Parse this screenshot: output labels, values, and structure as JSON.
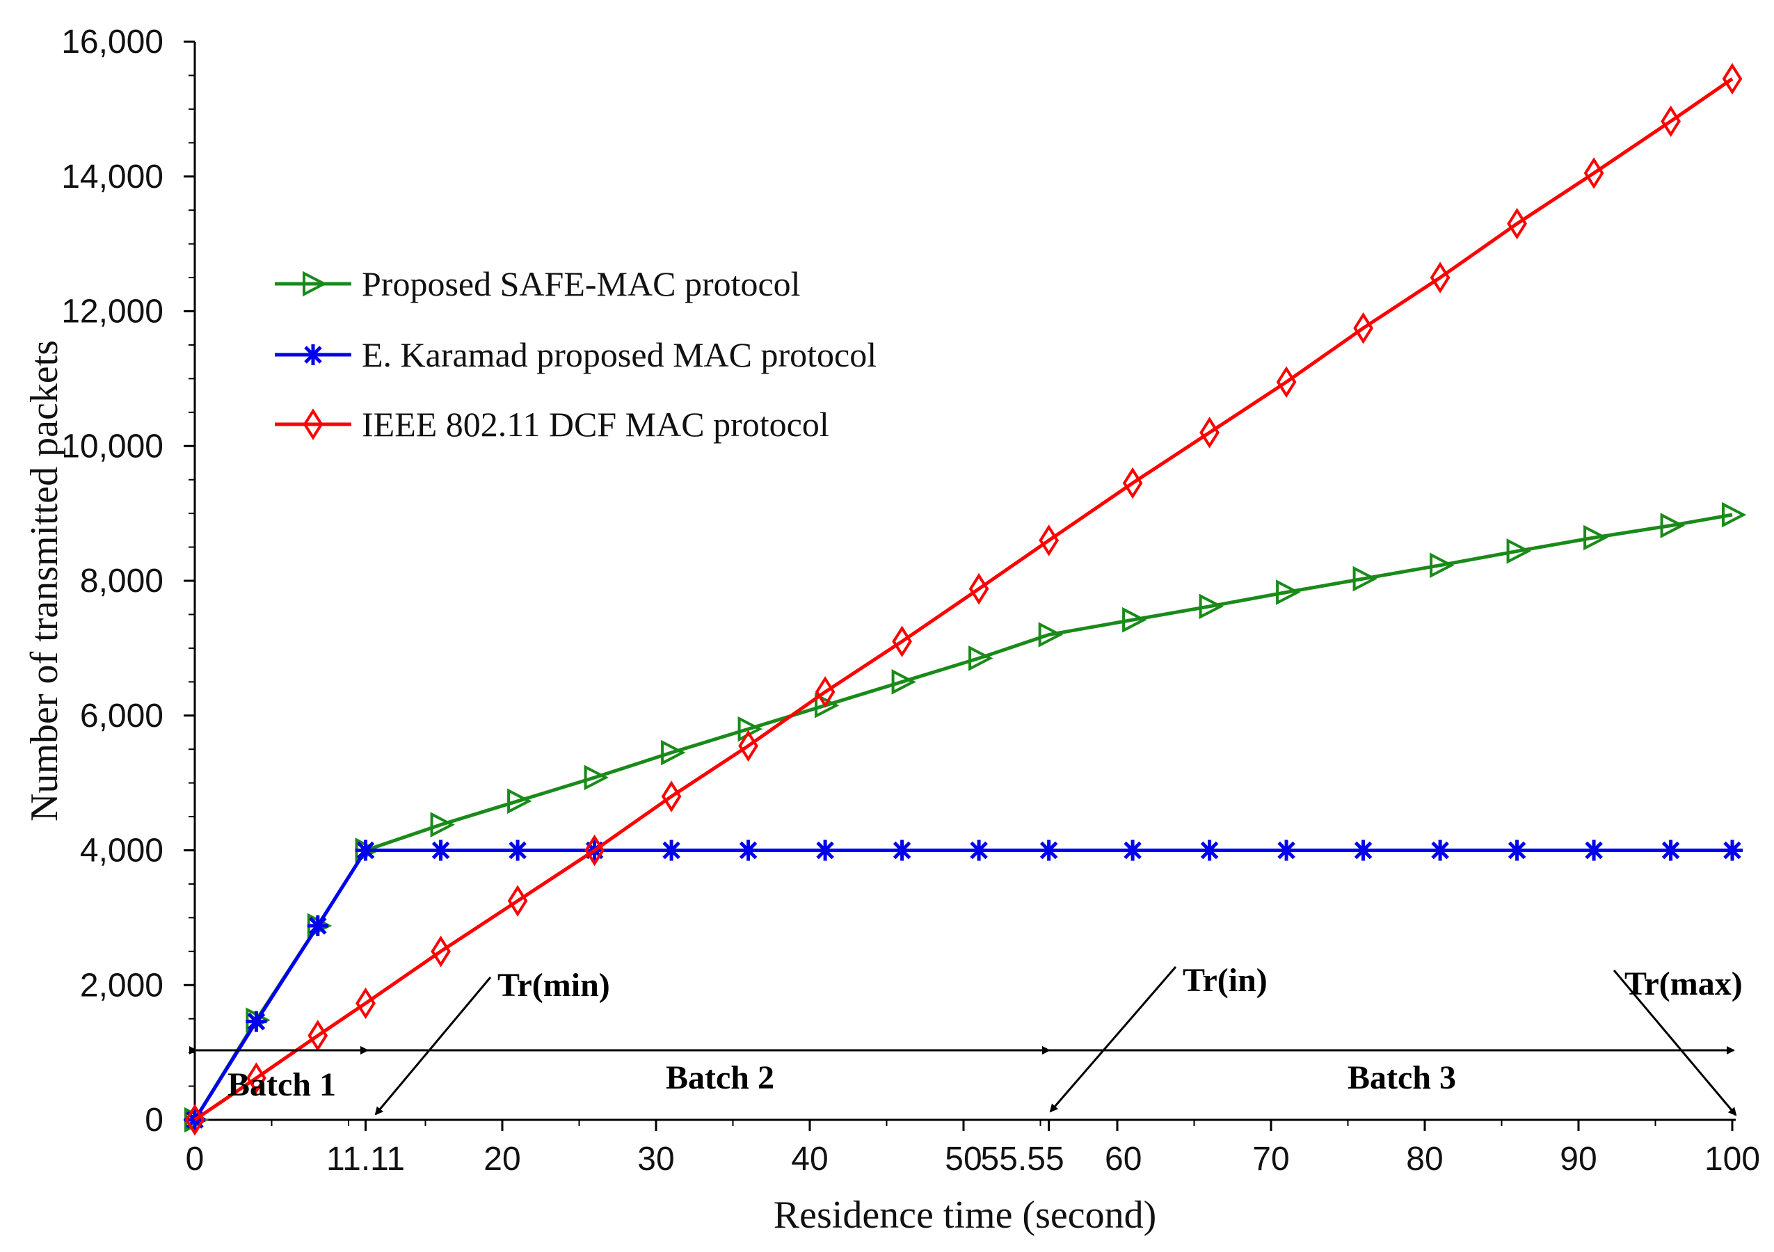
{
  "chart_data": {
    "type": "line",
    "title": "",
    "xlabel": "Residence time (second)",
    "ylabel": "Number of transmitted packets",
    "xlim": [
      0,
      100
    ],
    "ylim": [
      0,
      16000
    ],
    "grid": false,
    "legend_position": "upper-left",
    "x_ticks": [
      0,
      11.11,
      20,
      30,
      40,
      50,
      55.55,
      60,
      70,
      80,
      90,
      100
    ],
    "x_tick_labels": [
      "0",
      "11.11",
      "20",
      "30",
      "40",
      "50",
      "55.55",
      "60",
      "70",
      "80",
      "90",
      "100"
    ],
    "y_ticks": [
      0,
      2000,
      4000,
      6000,
      8000,
      10000,
      12000,
      14000,
      16000
    ],
    "y_tick_labels": [
      "0",
      "2,000",
      "4,000",
      "6,000",
      "8,000",
      "10,000",
      "12,000",
      "14,000",
      "16,000"
    ],
    "series": [
      {
        "name": "Proposed SAFE-MAC protocol",
        "color": "#1a8a1a",
        "marker": "triangle-right",
        "x": [
          0,
          4,
          8,
          11.11,
          16,
          21,
          26,
          31,
          36,
          41,
          46,
          51,
          55.55,
          61,
          66,
          71,
          76,
          81,
          86,
          91,
          96,
          100
        ],
        "values": [
          0,
          1480,
          2880,
          4000,
          4380,
          4730,
          5080,
          5450,
          5800,
          6150,
          6500,
          6850,
          7200,
          7420,
          7620,
          7830,
          8030,
          8230,
          8440,
          8640,
          8820,
          8980
        ]
      },
      {
        "name": "E. Karamad proposed MAC protocol",
        "color": "#0000ee",
        "marker": "asterisk",
        "x": [
          0,
          4,
          8,
          11.11,
          16,
          21,
          26,
          31,
          36,
          41,
          46,
          51,
          55.55,
          61,
          66,
          71,
          76,
          81,
          86,
          91,
          96,
          100
        ],
        "values": [
          0,
          1460,
          2880,
          4000,
          4000,
          4000,
          4000,
          4000,
          4000,
          4000,
          4000,
          4000,
          4000,
          4000,
          4000,
          4000,
          4000,
          4000,
          4000,
          4000,
          4000,
          4000
        ]
      },
      {
        "name": "IEEE 802.11 DCF MAC protocol",
        "color": "#ff0000",
        "marker": "diamond",
        "x": [
          0,
          4,
          8,
          11.11,
          16,
          21,
          26,
          31,
          36,
          41,
          46,
          51,
          55.55,
          61,
          66,
          71,
          76,
          81,
          86,
          91,
          96,
          100
        ],
        "values": [
          0,
          620,
          1250,
          1730,
          2500,
          3250,
          4000,
          4800,
          5550,
          6350,
          7100,
          7880,
          8600,
          9450,
          10200,
          10950,
          11750,
          12500,
          13300,
          14050,
          14820,
          15450
        ]
      }
    ],
    "annotations": {
      "tr_min": "Tr(min)",
      "tr_in": "Tr(in)",
      "tr_max": "Tr(max)",
      "batch1": "Batch 1",
      "batch2": "Batch 2",
      "batch3": "Batch 3"
    }
  }
}
